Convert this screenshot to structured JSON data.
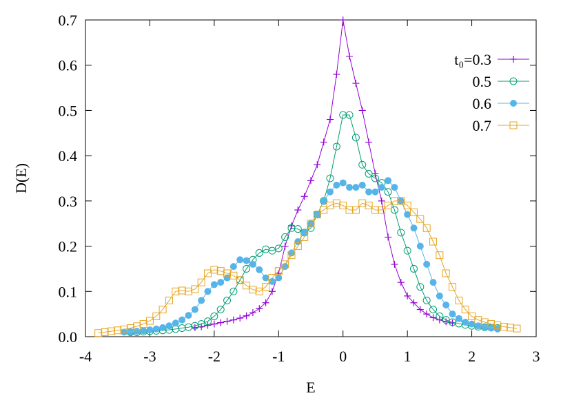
{
  "chart_data": {
    "type": "line",
    "xlabel": "E",
    "ylabel": "D(E)",
    "xlim": [
      -4,
      3
    ],
    "xticks": [
      -4,
      -3,
      -2,
      -1,
      0,
      1,
      2,
      3
    ],
    "ylim": [
      0,
      0.7
    ],
    "yticks": [
      {
        "value": 0,
        "label": "0.0"
      },
      0.1,
      0.2,
      0.3,
      0.4,
      0.5,
      0.6,
      0.7
    ],
    "legend": "upper right",
    "series": [
      {
        "name": "t₀=0.3",
        "color": "#9400d3",
        "marker": "plus",
        "x": [
          -2.3,
          -2.2,
          -2.1,
          -2.0,
          -1.9,
          -1.8,
          -1.7,
          -1.6,
          -1.5,
          -1.4,
          -1.3,
          -1.2,
          -1.1,
          -1.0,
          -0.9,
          -0.8,
          -0.7,
          -0.6,
          -0.5,
          -0.4,
          -0.3,
          -0.2,
          -0.1,
          0,
          0.1,
          0.2,
          0.3,
          0.4,
          0.5,
          0.6,
          0.7,
          0.8,
          0.9,
          1.0,
          1.1,
          1.2,
          1.3,
          1.4,
          1.5,
          1.6,
          1.7
        ],
        "values": [
          0.02,
          0.022,
          0.025,
          0.028,
          0.031,
          0.034,
          0.037,
          0.041,
          0.046,
          0.053,
          0.062,
          0.075,
          0.1,
          0.14,
          0.2,
          0.245,
          0.28,
          0.31,
          0.345,
          0.38,
          0.43,
          0.48,
          0.58,
          0.7,
          0.62,
          0.56,
          0.5,
          0.43,
          0.36,
          0.3,
          0.22,
          0.16,
          0.12,
          0.09,
          0.075,
          0.06,
          0.05,
          0.042,
          0.037,
          0.033,
          0.03
        ]
      },
      {
        "name": "0.5",
        "color": "#009e73",
        "marker": "circle",
        "x": [
          -3.3,
          -3.2,
          -3.1,
          -3.0,
          -2.9,
          -2.8,
          -2.7,
          -2.6,
          -2.5,
          -2.4,
          -2.3,
          -2.2,
          -2.1,
          -2.0,
          -1.9,
          -1.8,
          -1.7,
          -1.6,
          -1.5,
          -1.4,
          -1.3,
          -1.2,
          -1.1,
          -1.0,
          -0.9,
          -0.8,
          -0.7,
          -0.6,
          -0.5,
          -0.4,
          -0.3,
          -0.2,
          -0.1,
          0,
          0.1,
          0.2,
          0.3,
          0.4,
          0.5,
          0.6,
          0.7,
          0.8,
          0.9,
          1.0,
          1.1,
          1.2,
          1.3,
          1.4,
          1.5,
          1.6,
          1.7,
          1.8,
          1.9,
          2.0,
          2.1,
          2.2,
          2.3,
          2.4
        ],
        "values": [
          0.01,
          0.01,
          0.011,
          0.012,
          0.013,
          0.014,
          0.015,
          0.017,
          0.019,
          0.021,
          0.024,
          0.028,
          0.034,
          0.045,
          0.06,
          0.08,
          0.1,
          0.125,
          0.15,
          0.17,
          0.185,
          0.193,
          0.19,
          0.195,
          0.22,
          0.24,
          0.238,
          0.23,
          0.24,
          0.27,
          0.3,
          0.35,
          0.42,
          0.49,
          0.49,
          0.44,
          0.38,
          0.36,
          0.35,
          0.34,
          0.32,
          0.28,
          0.23,
          0.19,
          0.15,
          0.11,
          0.08,
          0.06,
          0.045,
          0.037,
          0.032,
          0.029,
          0.026,
          0.024,
          0.022,
          0.021,
          0.02,
          0.019
        ]
      },
      {
        "name": "0.6",
        "color": "#56b4e9",
        "marker": "dot",
        "x": [
          -3.4,
          -3.3,
          -3.2,
          -3.1,
          -3.0,
          -2.9,
          -2.8,
          -2.7,
          -2.6,
          -2.5,
          -2.4,
          -2.3,
          -2.2,
          -2.1,
          -2.0,
          -1.9,
          -1.8,
          -1.7,
          -1.6,
          -1.5,
          -1.4,
          -1.3,
          -1.2,
          -1.1,
          -1.0,
          -0.9,
          -0.8,
          -0.7,
          -0.6,
          -0.5,
          -0.4,
          -0.3,
          -0.2,
          -0.1,
          0,
          0.1,
          0.2,
          0.3,
          0.4,
          0.5,
          0.6,
          0.7,
          0.8,
          0.9,
          1.0,
          1.1,
          1.2,
          1.3,
          1.4,
          1.5,
          1.6,
          1.7,
          1.8,
          1.9,
          2.0,
          2.1,
          2.2,
          2.3,
          2.4
        ],
        "values": [
          0.01,
          0.011,
          0.012,
          0.013,
          0.015,
          0.017,
          0.02,
          0.024,
          0.03,
          0.037,
          0.047,
          0.06,
          0.08,
          0.1,
          0.115,
          0.12,
          0.13,
          0.155,
          0.17,
          0.168,
          0.16,
          0.148,
          0.13,
          0.122,
          0.13,
          0.155,
          0.185,
          0.21,
          0.23,
          0.25,
          0.27,
          0.3,
          0.32,
          0.335,
          0.34,
          0.33,
          0.33,
          0.335,
          0.32,
          0.32,
          0.33,
          0.345,
          0.33,
          0.3,
          0.27,
          0.24,
          0.2,
          0.16,
          0.12,
          0.09,
          0.07,
          0.05,
          0.04,
          0.032,
          0.028,
          0.024,
          0.021,
          0.019,
          0.017
        ]
      },
      {
        "name": "0.7",
        "color": "#e6a520",
        "marker": "square",
        "x": [
          -3.8,
          -3.7,
          -3.6,
          -3.5,
          -3.4,
          -3.3,
          -3.2,
          -3.1,
          -3.0,
          -2.9,
          -2.8,
          -2.7,
          -2.6,
          -2.5,
          -2.4,
          -2.3,
          -2.2,
          -2.1,
          -2.0,
          -1.9,
          -1.8,
          -1.7,
          -1.6,
          -1.5,
          -1.4,
          -1.3,
          -1.2,
          -1.1,
          -1.0,
          -0.9,
          -0.8,
          -0.7,
          -0.6,
          -0.5,
          -0.4,
          -0.3,
          -0.2,
          -0.1,
          0,
          0.1,
          0.2,
          0.3,
          0.4,
          0.5,
          0.6,
          0.7,
          0.8,
          0.9,
          1.0,
          1.1,
          1.2,
          1.3,
          1.4,
          1.5,
          1.6,
          1.7,
          1.8,
          1.9,
          2.0,
          2.1,
          2.2,
          2.3,
          2.4,
          2.5,
          2.6,
          2.7
        ],
        "values": [
          0.008,
          0.01,
          0.012,
          0.014,
          0.016,
          0.019,
          0.023,
          0.028,
          0.035,
          0.045,
          0.06,
          0.08,
          0.1,
          0.102,
          0.1,
          0.105,
          0.12,
          0.14,
          0.148,
          0.145,
          0.14,
          0.135,
          0.125,
          0.113,
          0.104,
          0.1,
          0.11,
          0.13,
          0.145,
          0.16,
          0.18,
          0.2,
          0.22,
          0.25,
          0.27,
          0.28,
          0.29,
          0.295,
          0.29,
          0.28,
          0.28,
          0.295,
          0.29,
          0.28,
          0.28,
          0.29,
          0.3,
          0.3,
          0.29,
          0.275,
          0.26,
          0.24,
          0.21,
          0.18,
          0.14,
          0.11,
          0.08,
          0.06,
          0.045,
          0.037,
          0.032,
          0.028,
          0.025,
          0.022,
          0.02,
          0.018
        ]
      }
    ]
  }
}
